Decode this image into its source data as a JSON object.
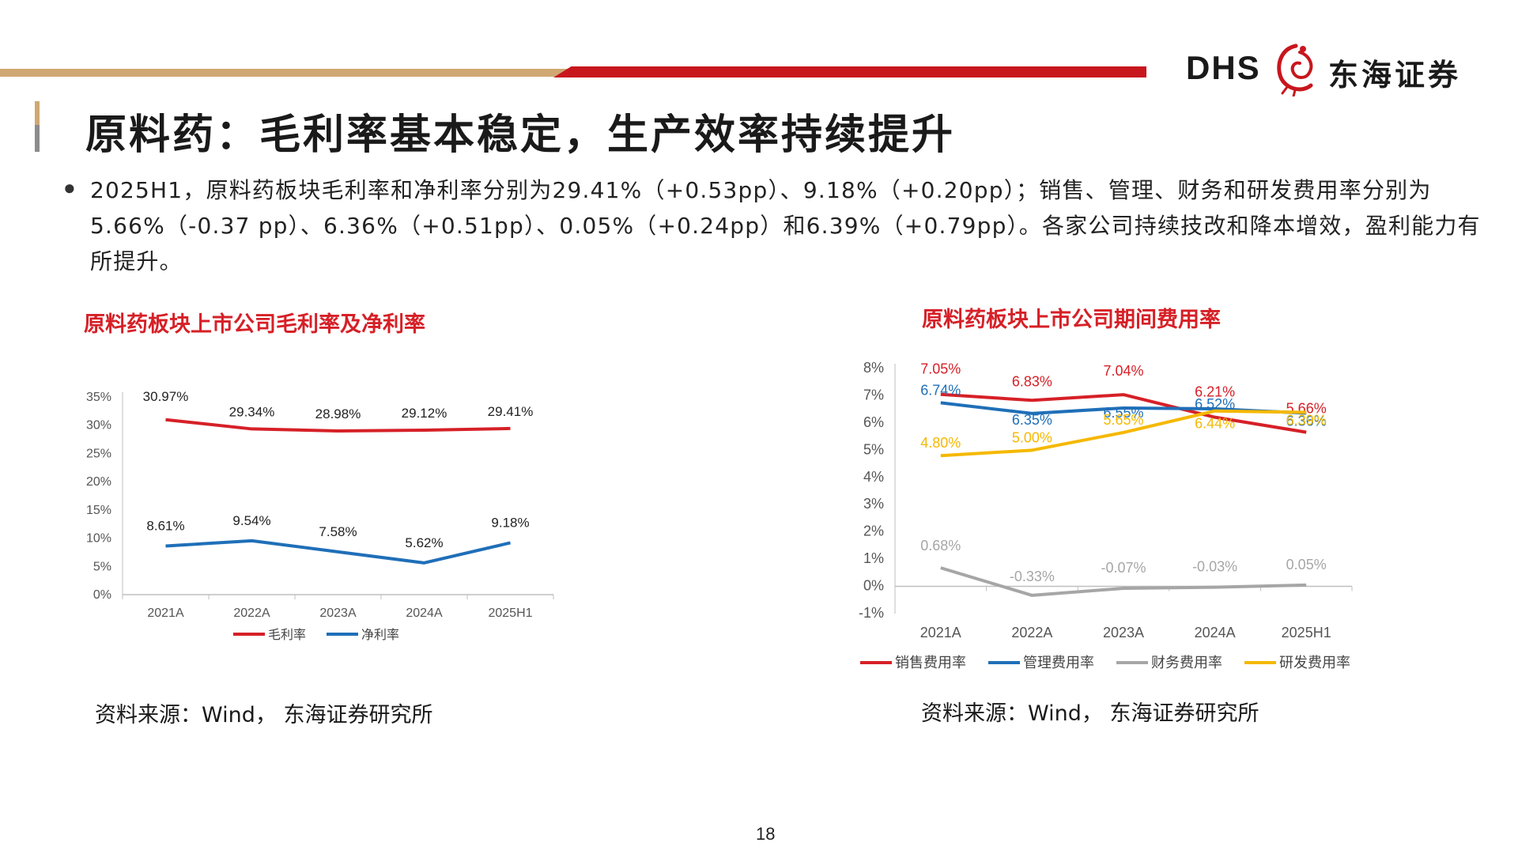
{
  "header": {
    "brand_latin": "DHS",
    "brand_cn": "东海证券",
    "colors": {
      "gold": "#cfa873",
      "red": "#c8161d"
    }
  },
  "title": "原料药：毛利率基本稳定，生产效率持续提升",
  "paragraph": "2025H1，原料药板块毛利率和净利率分别为29.41%（+0.53pp）、9.18%（+0.20pp）；销售、管理、财务和研发费用率分别为5.66%（-0.37 pp）、6.36%（+0.51pp）、0.05%（+0.24pp）和6.39%（+0.79pp）。各家公司持续技改和降本增效，盈利能力有所提升。",
  "left_chart": {
    "heading": "原料药板块上市公司毛利率及净利率",
    "source": "资料来源：Wind， 东海证券研究所"
  },
  "right_chart": {
    "heading": "原料药板块上市公司期间费用率",
    "source": "资料来源：Wind， 东海证券研究所"
  },
  "page_number": "18",
  "chart_data": [
    {
      "type": "line",
      "title": "原料药板块上市公司毛利率及净利率",
      "categories": [
        "2021A",
        "2022A",
        "2023A",
        "2024A",
        "2025H1"
      ],
      "y_ticks": [
        "0%",
        "5%",
        "10%",
        "15%",
        "20%",
        "25%",
        "30%",
        "35%"
      ],
      "ylim": [
        0,
        35
      ],
      "legend_position": "bottom",
      "series": [
        {
          "name": "毛利率",
          "color": "#d62027",
          "values": [
            30.97,
            29.34,
            28.98,
            29.12,
            29.41
          ],
          "labels": [
            "30.97%",
            "29.34%",
            "28.98%",
            "29.12%",
            "29.41%"
          ]
        },
        {
          "name": "净利率",
          "color": "#1f6fb8",
          "values": [
            8.61,
            9.54,
            7.58,
            5.62,
            9.18
          ],
          "labels": [
            "8.61%",
            "9.54%",
            "7.58%",
            "5.62%",
            "9.18%"
          ]
        }
      ]
    },
    {
      "type": "line",
      "title": "原料药板块上市公司期间费用率",
      "categories": [
        "2021A",
        "2022A",
        "2023A",
        "2024A",
        "2025H1"
      ],
      "y_ticks": [
        "-1%",
        "0%",
        "1%",
        "2%",
        "3%",
        "4%",
        "5%",
        "6%",
        "7%",
        "8%"
      ],
      "ylim": [
        -1,
        8
      ],
      "legend_position": "bottom",
      "series": [
        {
          "name": "销售费用率",
          "color": "#d62027",
          "values": [
            7.05,
            6.83,
            7.04,
            6.21,
            5.66
          ],
          "labels": [
            "7.05%",
            "6.83%",
            "7.04%",
            "6.21%",
            "5.66%"
          ]
        },
        {
          "name": "管理费用率",
          "color": "#1f6fb8",
          "values": [
            6.74,
            6.35,
            6.55,
            6.52,
            6.36
          ],
          "labels": [
            "6.74%",
            "6.35%",
            "6.55%",
            "6.52%",
            "6.36%"
          ]
        },
        {
          "name": "财务费用率",
          "color": "#a6a6a6",
          "values": [
            0.68,
            -0.33,
            -0.07,
            -0.03,
            0.05
          ],
          "labels": [
            "0.68%",
            "-0.33%",
            "-0.07%",
            "-0.03%",
            "0.05%"
          ]
        },
        {
          "name": "研发费用率",
          "color": "#f5b800",
          "values": [
            4.8,
            5.0,
            5.65,
            6.44,
            6.39
          ],
          "labels": [
            "4.80%",
            "5.00%",
            "5.65%",
            "6.44%",
            "6.39%"
          ]
        }
      ]
    }
  ]
}
